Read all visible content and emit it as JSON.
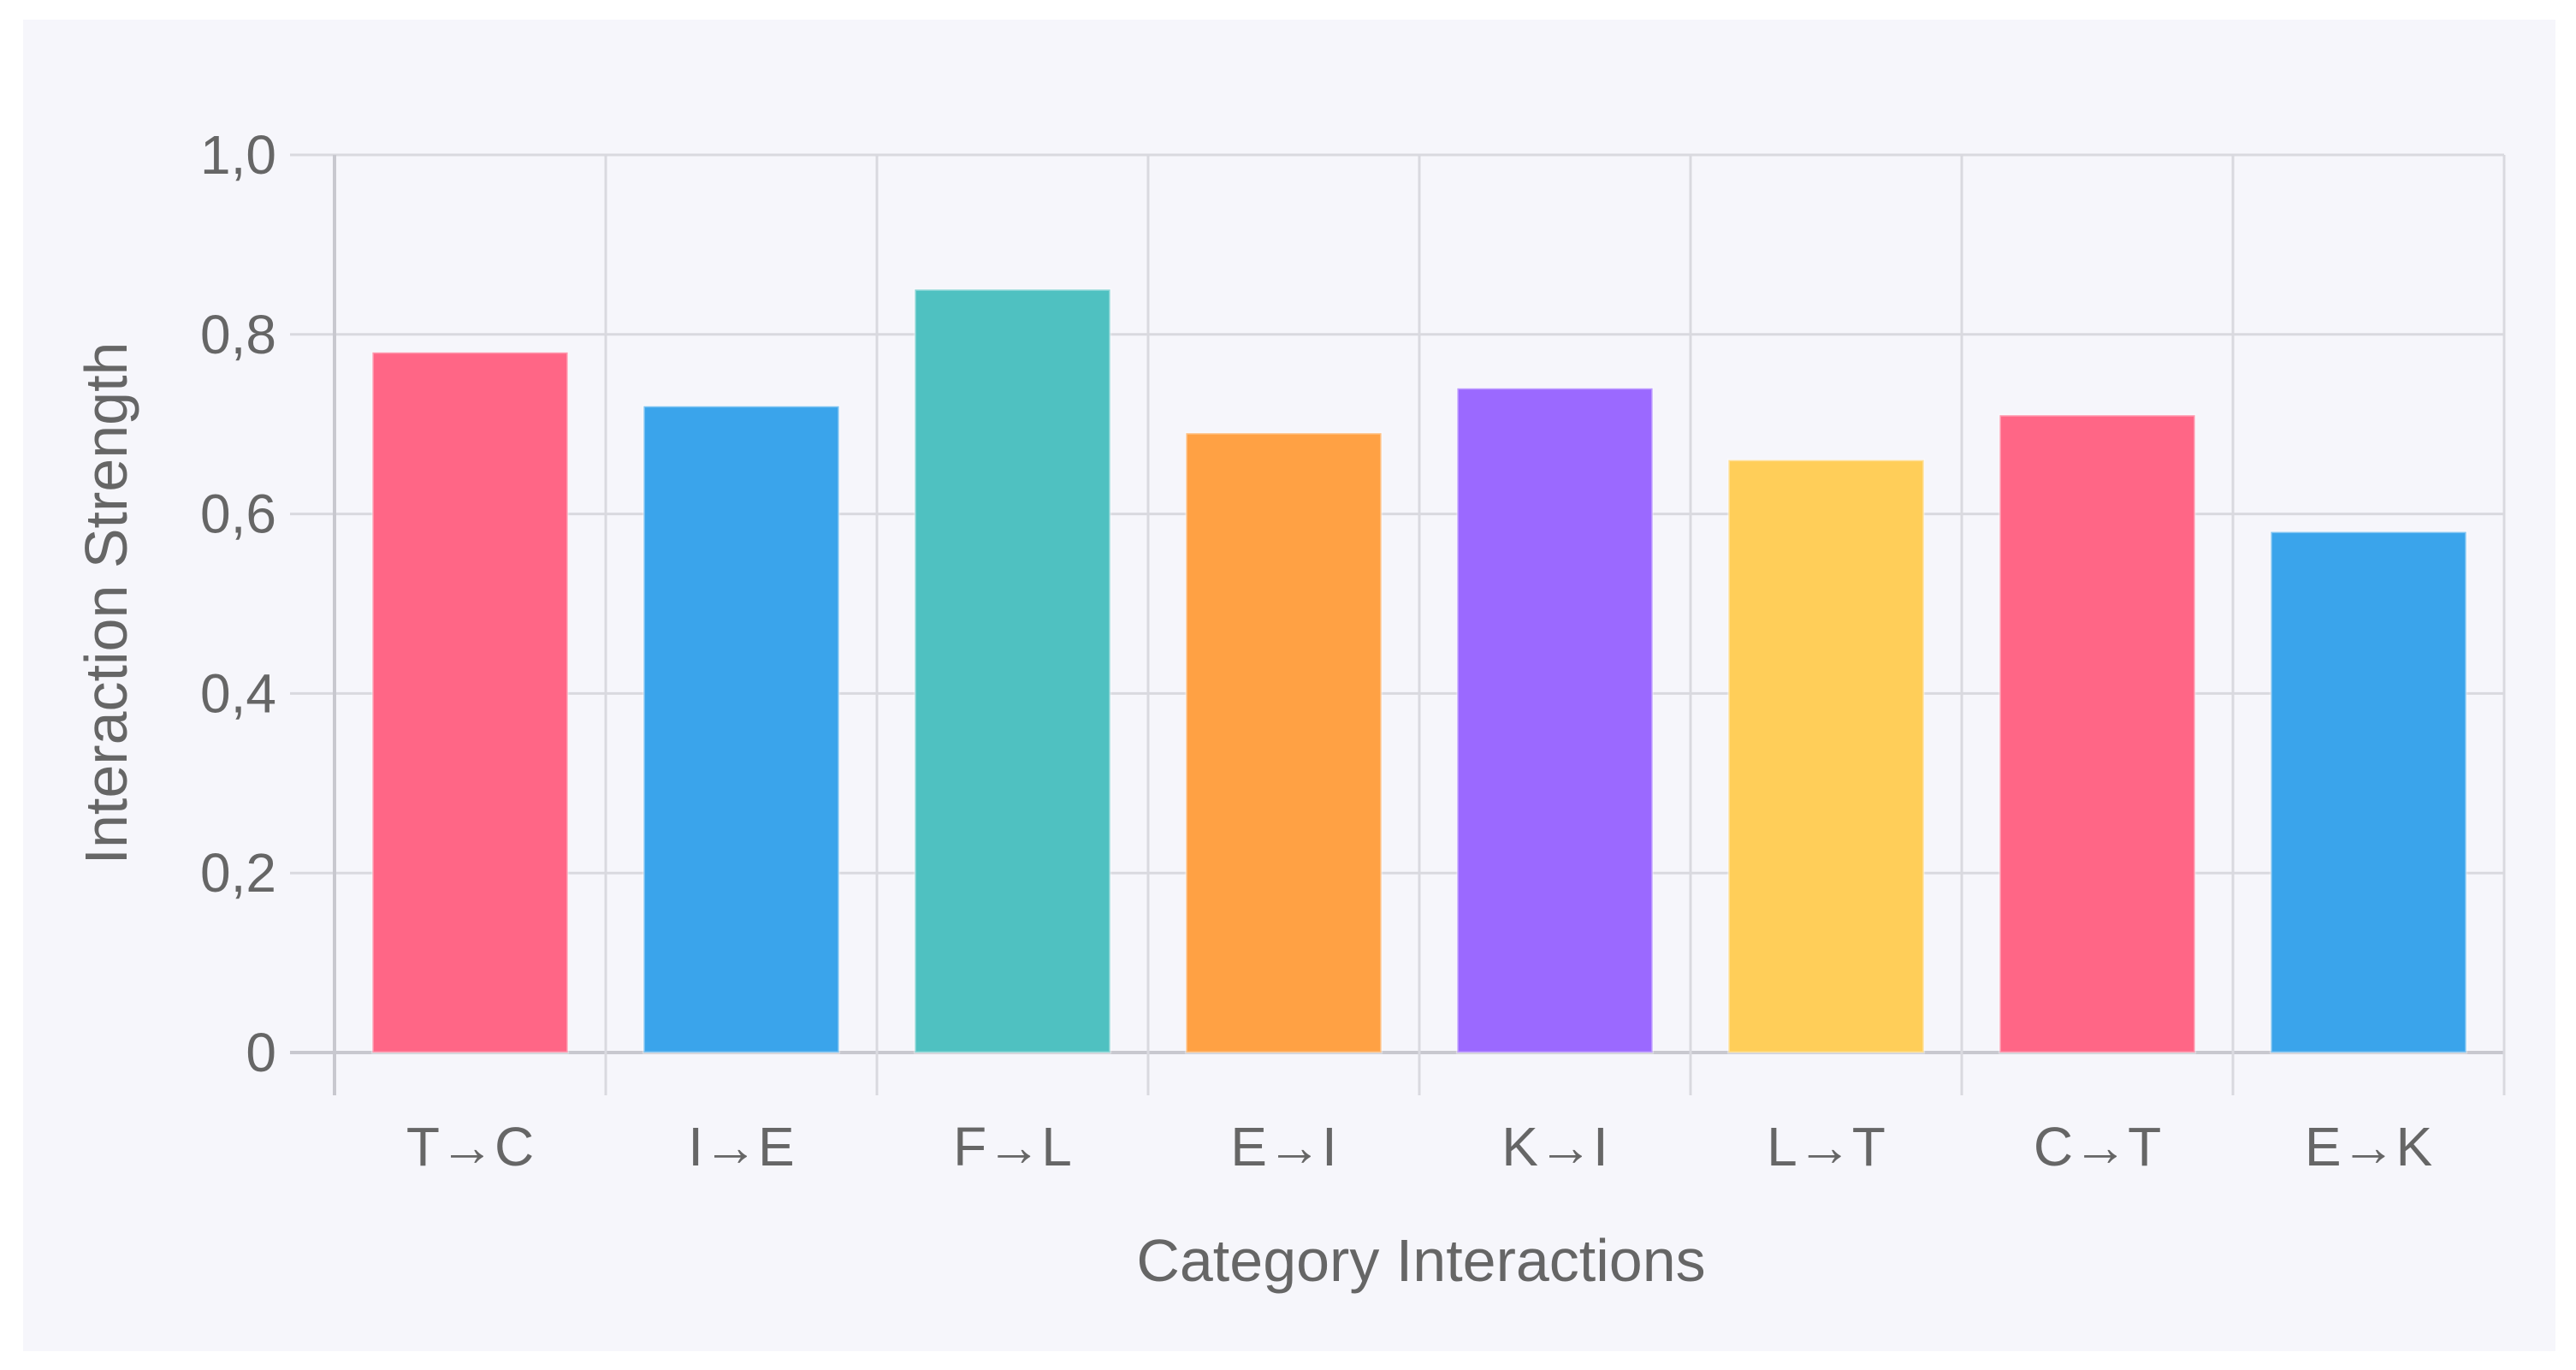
{
  "chart_data": {
    "type": "bar",
    "categories": [
      "T→C",
      "I→E",
      "F→L",
      "E→I",
      "K→I",
      "L→T",
      "C→T",
      "E→K"
    ],
    "values": [
      0.78,
      0.72,
      0.85,
      0.69,
      0.74,
      0.66,
      0.71,
      0.58
    ],
    "colors": [
      "#ff6384",
      "#36a2eb",
      "#4bc0c0",
      "#ff9f40",
      "#9966ff",
      "#ffcd56",
      "#ff6384",
      "#36a2eb"
    ],
    "title": "",
    "xlabel": "Category Interactions",
    "ylabel": "Interaction Strength",
    "ylim": [
      0,
      1
    ],
    "yticks": [
      "0",
      "0,2",
      "0,4",
      "0,6",
      "0,8",
      "1,0"
    ],
    "grid": true,
    "legend": "none"
  }
}
